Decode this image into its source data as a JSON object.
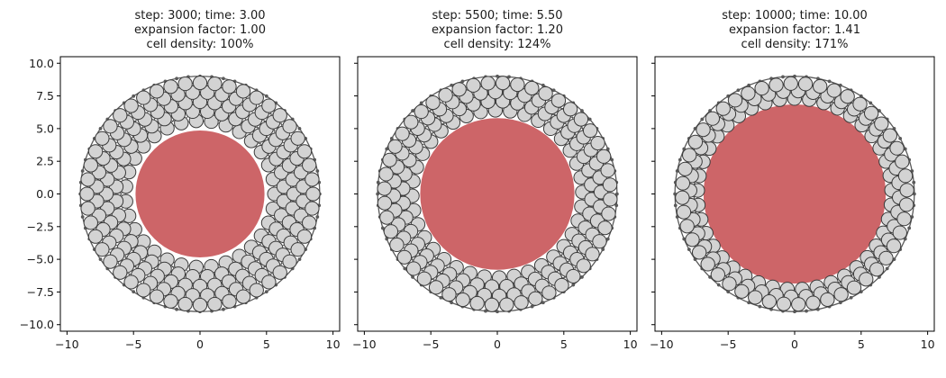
{
  "chart_data": [
    {
      "type": "scatter",
      "title_lines": [
        "step: 3000; time: 3.00",
        "expansion factor: 1.00",
        "cell density: 100%"
      ],
      "xlim": [
        -10.5,
        10.5
      ],
      "ylim": [
        -10.5,
        10.5
      ],
      "xticks": [
        -10,
        -5,
        0,
        5,
        10
      ],
      "yticks": [
        -10.0,
        -7.5,
        -5.0,
        -2.5,
        0.0,
        2.5,
        5.0,
        7.5,
        10.0
      ],
      "ytick_labels": [
        "−10.0",
        "−7.5",
        "−5.0",
        "−2.5",
        "0.0",
        "2.5",
        "5.0",
        "7.5",
        "10.0"
      ],
      "xtick_labels": [
        "−10",
        "−5",
        "0",
        "5",
        "10"
      ],
      "show_yticklabels": true,
      "central_disk": {
        "center": [
          0,
          0
        ],
        "radius": 4.85
      },
      "boundary_ring": {
        "radius": 9.0,
        "node_count": 64
      },
      "cells": {
        "inner_radius": 5.6,
        "outer_radius": 8.5,
        "rings": 5,
        "cell_radius": 0.52
      },
      "grid": false
    },
    {
      "type": "scatter",
      "title_lines": [
        "step: 5500; time: 5.50",
        "expansion factor: 1.20",
        "cell density: 124%"
      ],
      "xlim": [
        -10.5,
        10.5
      ],
      "ylim": [
        -10.5,
        10.5
      ],
      "xticks": [
        -10,
        -5,
        0,
        5,
        10
      ],
      "xtick_labels": [
        "−10",
        "−5",
        "0",
        "5",
        "10"
      ],
      "show_yticklabels": false,
      "central_disk": {
        "center": [
          0,
          0
        ],
        "radius": 5.8
      },
      "boundary_ring": {
        "radius": 9.0,
        "node_count": 64
      },
      "cells": {
        "inner_radius": 6.4,
        "outer_radius": 8.5,
        "rings": 4,
        "cell_radius": 0.52
      },
      "grid": false
    },
    {
      "type": "scatter",
      "title_lines": [
        "step: 10000; time: 10.00",
        "expansion factor: 1.41",
        "cell density: 171%"
      ],
      "xlim": [
        -10.5,
        10.5
      ],
      "ylim": [
        -10.5,
        10.5
      ],
      "xticks": [
        -10,
        -5,
        0,
        5,
        10
      ],
      "xtick_labels": [
        "−10",
        "−5",
        "0",
        "5",
        "10"
      ],
      "show_yticklabels": false,
      "central_disk": {
        "center": [
          0,
          0
        ],
        "radius": 6.85
      },
      "boundary_ring": {
        "radius": 9.0,
        "node_count": 64
      },
      "cells": {
        "inner_radius": 7.3,
        "outer_radius": 8.45,
        "rings": 3,
        "cell_radius": 0.52
      },
      "grid": false
    }
  ],
  "colors": {
    "disk": "#cd6568",
    "cell_fill": "#d3d3d3",
    "cell_stroke": "#3a3a3a",
    "ring": "#5a5a5a",
    "axis": "#000000"
  }
}
